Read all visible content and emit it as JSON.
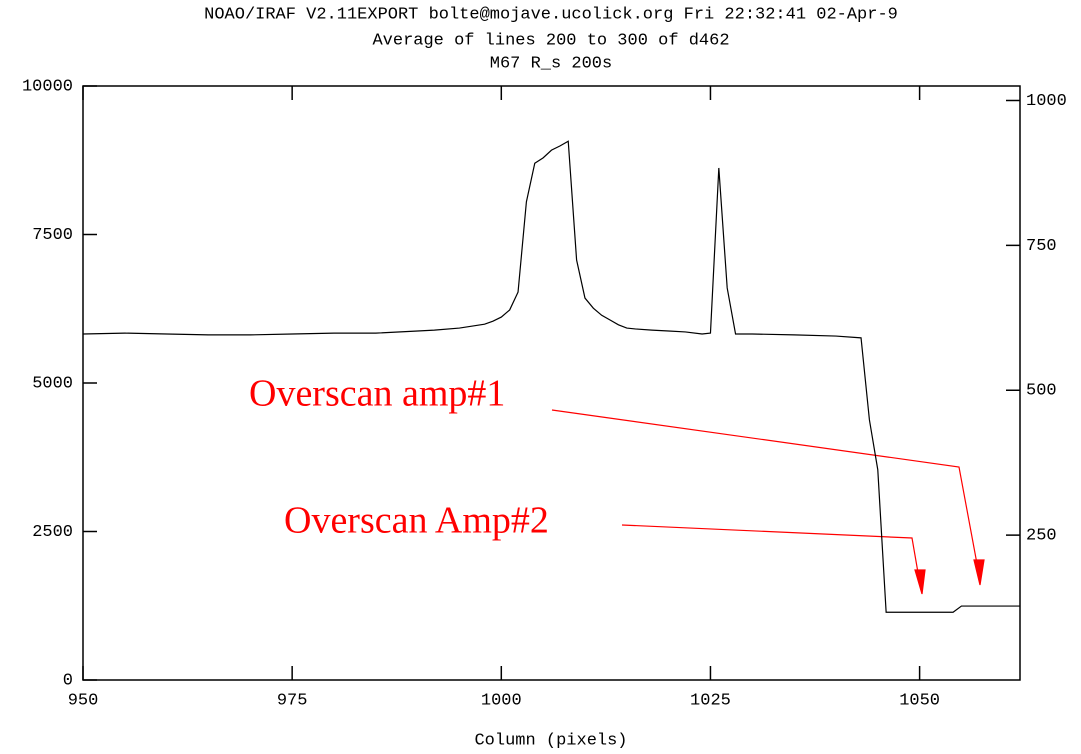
{
  "chart_data": {
    "type": "line",
    "title_lines": [
      "NOAO/IRAF V2.11EXPORT bolte@mojave.ucolick.org Fri 22:32:41 02-Apr-9",
      "Average of lines 200 to 300 of d462",
      "M67 R_s 200s"
    ],
    "x_label": "Column (pixels)",
    "x": [
      950,
      955,
      960,
      965,
      970,
      975,
      980,
      985,
      990,
      992,
      995,
      998,
      999,
      1000,
      1001,
      1002,
      1003,
      1004,
      1005,
      1006,
      1007,
      1008,
      1009,
      1010,
      1011,
      1012,
      1013,
      1014,
      1015,
      1016,
      1018,
      1020,
      1022,
      1024,
      1025,
      1026,
      1027,
      1028,
      1030,
      1035,
      1040,
      1043,
      1044,
      1045,
      1046,
      1047,
      1050,
      1054,
      1055,
      1058,
      1062
    ],
    "values": [
      5825,
      5840,
      5825,
      5810,
      5810,
      5825,
      5840,
      5840,
      5875,
      5890,
      5925,
      5990,
      6040,
      6110,
      6230,
      6530,
      8050,
      8700,
      8790,
      8920,
      8990,
      9070,
      7070,
      6430,
      6260,
      6140,
      6060,
      5980,
      5925,
      5910,
      5890,
      5875,
      5860,
      5825,
      5840,
      8620,
      6600,
      5825,
      5825,
      5810,
      5790,
      5760,
      4380,
      3540,
      1140,
      1140,
      1140,
      1140,
      1245,
      1245,
      1245
    ],
    "color": "#000000",
    "xlim": [
      950,
      1062
    ],
    "xticks": [
      950,
      975,
      1000,
      1025,
      1050
    ],
    "ylim": [
      0,
      10000
    ],
    "yticks": [
      0,
      2500,
      5000,
      7500,
      10000
    ],
    "y2lim": [
      0,
      1025
    ],
    "y2ticks": [
      250,
      500,
      750,
      1000
    ],
    "annotations": [
      "Overscan amp#1",
      "Overscan Amp#2"
    ],
    "annotation_color": "#ff0000"
  }
}
